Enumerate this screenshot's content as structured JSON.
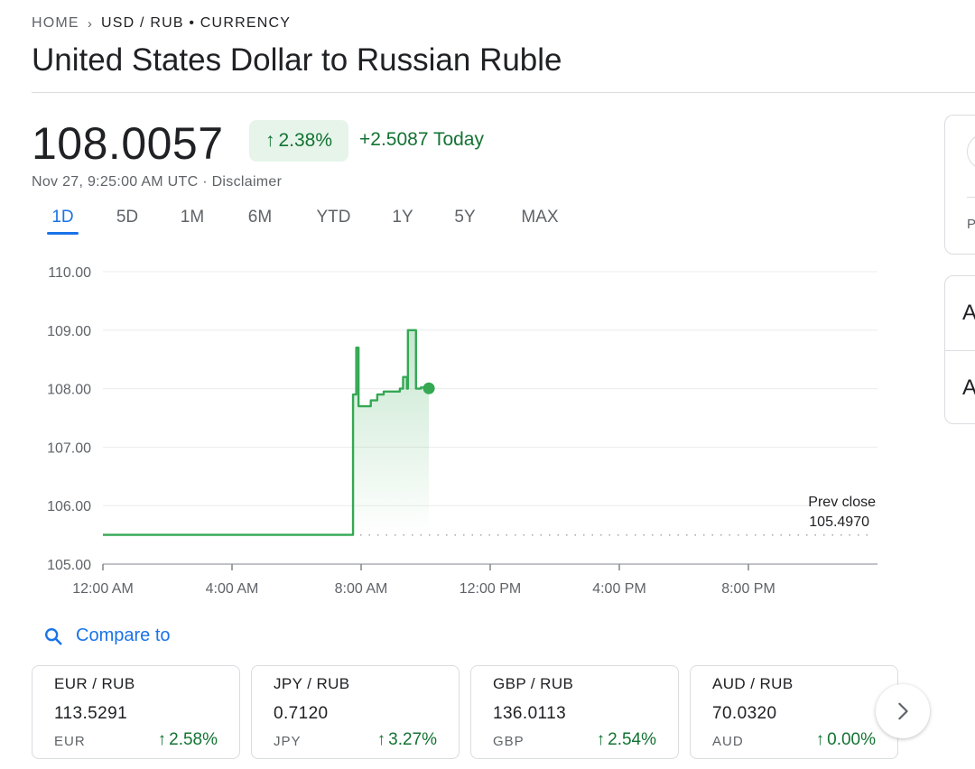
{
  "breadcrumb": {
    "home": "HOME",
    "separator": "›",
    "current": "USD / RUB • CURRENCY"
  },
  "title": "United States Dollar to Russian Ruble",
  "quote": {
    "price": "108.0057",
    "percent_change": "2.38%",
    "percent_arrow": "↑",
    "today_change": "+2.5087 Today",
    "timestamp": "Nov 27, 9:25:00 AM UTC · Disclaimer"
  },
  "range_tabs": [
    "1D",
    "5D",
    "1M",
    "6M",
    "YTD",
    "1Y",
    "5Y",
    "MAX"
  ],
  "active_range": "1D",
  "colors": {
    "positive": "#137333",
    "line": "#34a853",
    "accent": "#1a73e8",
    "muted": "#5f6368"
  },
  "chart_data": {
    "type": "line",
    "y_ticks": [
      "110.00",
      "109.00",
      "108.00",
      "107.00",
      "106.00",
      "105.00"
    ],
    "x_ticks": [
      "12:00 AM",
      "4:00 AM",
      "8:00 AM",
      "12:00 PM",
      "4:00 PM",
      "8:00 PM"
    ],
    "ylim": [
      105,
      110
    ],
    "xlim_hours": [
      0,
      24
    ],
    "grid": true,
    "prev_close_label": "Prev close",
    "prev_close_value": "105.4970",
    "prev_close": 105.497,
    "series": [
      {
        "x": [
          0,
          7.7,
          7.75,
          7.85,
          7.92,
          8.1,
          8.3,
          8.5,
          8.65,
          8.7,
          9.2,
          9.3,
          9.42,
          9.45,
          9.65,
          9.7,
          9.85,
          10.1
        ],
        "y": [
          105.5,
          105.5,
          107.9,
          108.7,
          107.7,
          107.7,
          107.8,
          107.9,
          107.9,
          107.95,
          108.0,
          108.2,
          108.0,
          109.0,
          109.0,
          108.0,
          108.02,
          108.0057
        ]
      }
    ]
  },
  "compare": {
    "label": "Compare to",
    "icon": "search-icon"
  },
  "related": [
    {
      "pair": "EUR / RUB",
      "value": "113.5291",
      "currency": "EUR",
      "arrow": "↑",
      "change": "2.58%"
    },
    {
      "pair": "JPY / RUB",
      "value": "0.7120",
      "currency": "JPY",
      "arrow": "↑",
      "change": "3.27%"
    },
    {
      "pair": "GBP / RUB",
      "value": "136.0113",
      "currency": "GBP",
      "arrow": "↑",
      "change": "2.54%"
    },
    {
      "pair": "AUD / RUB",
      "value": "70.0320",
      "currency": "AUD",
      "arrow": "↑",
      "change": "0.00%"
    }
  ],
  "side_panel": {
    "letter_p": "P",
    "row1_letter": "A",
    "row2_letter": "A"
  },
  "next_icon": "chevron-right-icon"
}
